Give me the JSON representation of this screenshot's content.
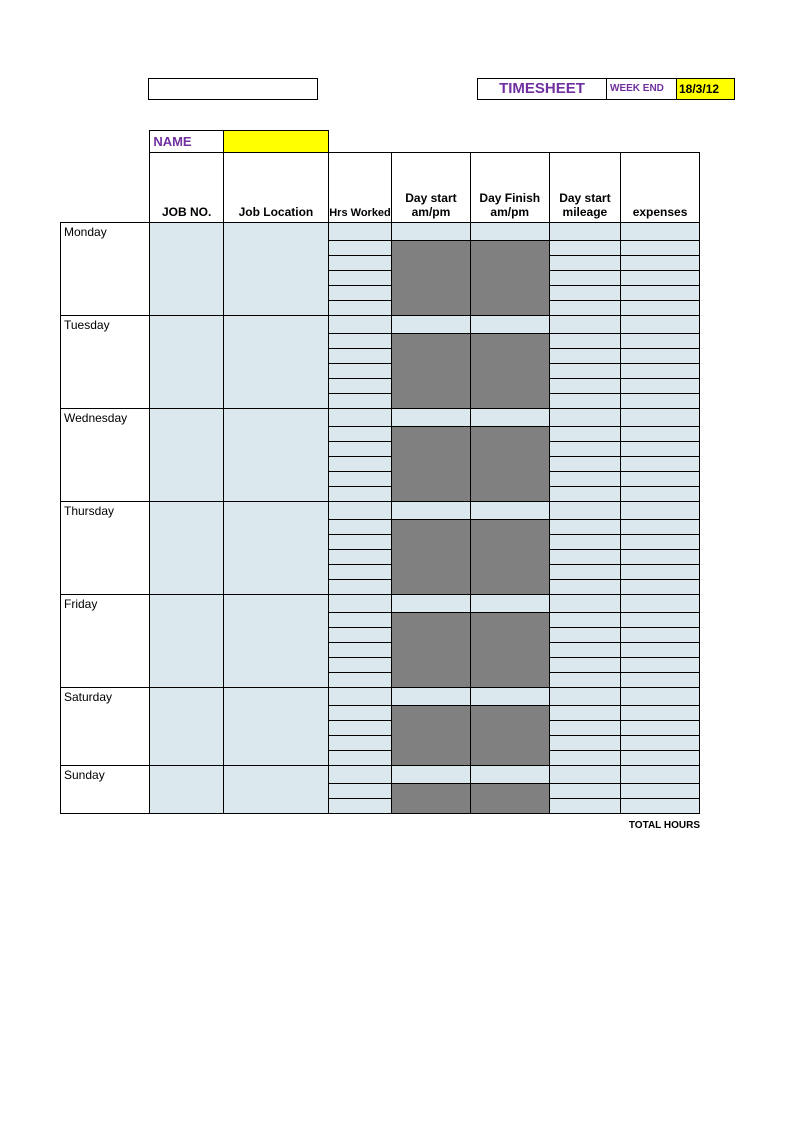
{
  "colors": {
    "light_blue": "#dbe9ef",
    "grey": "#808080",
    "yellow": "#ffff00",
    "purple_text": "#7030a0",
    "border": "#000000",
    "background": "#ffffff"
  },
  "header": {
    "title": "TIMESHEET",
    "week_end_label": "WEEK END",
    "week_end_value": "18/3/12",
    "name_label": "NAME",
    "name_value": ""
  },
  "columns": {
    "job_no": "JOB NO.",
    "job_location": "Job Location",
    "hrs_worked": "Hrs Worked",
    "day_start": "Day start am/pm",
    "day_finish": "Day Finish am/pm",
    "day_start_mileage": "Day start mileage",
    "expenses": "expenses"
  },
  "days": [
    {
      "label": "Monday",
      "rows": 6
    },
    {
      "label": "Tuesday",
      "rows": 6
    },
    {
      "label": "Wednesday",
      "rows": 6
    },
    {
      "label": "Thursday",
      "rows": 6
    },
    {
      "label": "Friday",
      "rows": 6
    },
    {
      "label": "Saturday",
      "rows": 5
    },
    {
      "label": "Sunday",
      "rows": 3
    }
  ],
  "footer": {
    "total_hours_label": "TOTAL HOURS"
  }
}
